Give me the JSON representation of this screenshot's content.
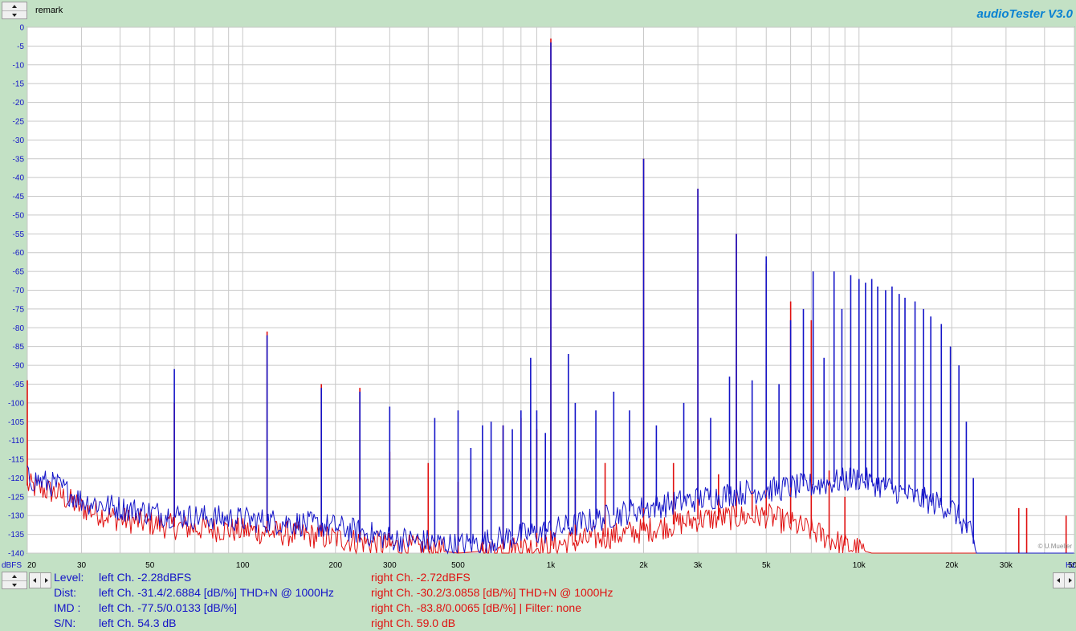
{
  "header": {
    "remark_label": "remark",
    "app_title": "audioTester  V3.0"
  },
  "watermark": "© U.Mueller",
  "stats": {
    "left": [
      {
        "label": "Level:",
        "value": "left Ch. -2.28dBFS"
      },
      {
        "label": "Dist:",
        "value": "left Ch. -31.4/2.6884 [dB/%] THD+N  @ 1000Hz"
      },
      {
        "label": "IMD  :",
        "value": "left Ch. -77.5/0.0133 [dB/%]"
      },
      {
        "label": "S/N:",
        "value": "left Ch. 54.3 dB"
      }
    ],
    "right": [
      "right Ch. -2.72dBFS",
      "right Ch. -30.2/3.0858 [dB/%] THD+N  @ 1000Hz",
      "right Ch. -83.8/0.0065 [dB/%] |   Filter: none",
      "right Ch. 59.0 dB"
    ]
  },
  "colors": {
    "left_channel": "#1414c8",
    "right_channel": "#e01010",
    "background": "#c3e1c5",
    "plot_background": "#ffffff",
    "grid": "#c8c8c8"
  },
  "chart_data": {
    "type": "line",
    "x_scale": "log",
    "xlim": [
      20,
      50000
    ],
    "ylim": [
      -140,
      0
    ],
    "grid": true,
    "ylabel": "dBFS",
    "xlabel": "Hz",
    "x_ticks": [
      {
        "value": 20,
        "label": "20"
      },
      {
        "value": 30,
        "label": "30"
      },
      {
        "value": 50,
        "label": "50"
      },
      {
        "value": 100,
        "label": "100"
      },
      {
        "value": 200,
        "label": "200"
      },
      {
        "value": 300,
        "label": "300"
      },
      {
        "value": 500,
        "label": "500"
      },
      {
        "value": 1000,
        "label": "1k"
      },
      {
        "value": 2000,
        "label": "2k"
      },
      {
        "value": 3000,
        "label": "3k"
      },
      {
        "value": 5000,
        "label": "5k"
      },
      {
        "value": 10000,
        "label": "10k"
      },
      {
        "value": 20000,
        "label": "20k"
      },
      {
        "value": 30000,
        "label": "30k"
      },
      {
        "value": 50000,
        "label": "50k"
      }
    ],
    "y_ticks": [
      0,
      -5,
      -10,
      -15,
      -20,
      -25,
      -30,
      -35,
      -40,
      -45,
      -50,
      -55,
      -60,
      -65,
      -70,
      -75,
      -80,
      -85,
      -90,
      -95,
      -100,
      -105,
      -110,
      -115,
      -120,
      -125,
      -130,
      -135,
      -140
    ],
    "series": [
      {
        "name": "left Ch.",
        "color": "#1414c8",
        "floor": [
          [
            20,
            -120
          ],
          [
            25,
            -122
          ],
          [
            30,
            -126
          ],
          [
            40,
            -128
          ],
          [
            60,
            -130
          ],
          [
            100,
            -131
          ],
          [
            150,
            -132
          ],
          [
            200,
            -133
          ],
          [
            300,
            -136
          ],
          [
            400,
            -137
          ],
          [
            500,
            -138
          ],
          [
            700,
            -136
          ],
          [
            1000,
            -134
          ],
          [
            2000,
            -128
          ],
          [
            4000,
            -124
          ],
          [
            7000,
            -122
          ],
          [
            10000,
            -120
          ],
          [
            15000,
            -125
          ],
          [
            20000,
            -128
          ],
          [
            23000,
            -135
          ],
          [
            24000,
            -140
          ],
          [
            50000,
            -140
          ]
        ],
        "peaks": [
          [
            60,
            -91
          ],
          [
            120,
            -82
          ],
          [
            180,
            -96
          ],
          [
            240,
            -97
          ],
          [
            300,
            -101
          ],
          [
            420,
            -104
          ],
          [
            500,
            -102
          ],
          [
            550,
            -112
          ],
          [
            600,
            -106
          ],
          [
            640,
            -105
          ],
          [
            700,
            -106
          ],
          [
            750,
            -107
          ],
          [
            800,
            -102
          ],
          [
            860,
            -88
          ],
          [
            900,
            -102
          ],
          [
            960,
            -108
          ],
          [
            1000,
            -4
          ],
          [
            1140,
            -87
          ],
          [
            1200,
            -100
          ],
          [
            1400,
            -102
          ],
          [
            1600,
            -97
          ],
          [
            1800,
            -102
          ],
          [
            2000,
            -35
          ],
          [
            2200,
            -106
          ],
          [
            2700,
            -100
          ],
          [
            3000,
            -43
          ],
          [
            3300,
            -104
          ],
          [
            3800,
            -93
          ],
          [
            4000,
            -55
          ],
          [
            4500,
            -94
          ],
          [
            5000,
            -61
          ],
          [
            5500,
            -95
          ],
          [
            6000,
            -78
          ],
          [
            6600,
            -75
          ],
          [
            7100,
            -65
          ],
          [
            7700,
            -88
          ],
          [
            8300,
            -65
          ],
          [
            8800,
            -75
          ],
          [
            9400,
            -66
          ],
          [
            10000,
            -67
          ],
          [
            10500,
            -68
          ],
          [
            11000,
            -67
          ],
          [
            11500,
            -69
          ],
          [
            12200,
            -70
          ],
          [
            12800,
            -69
          ],
          [
            13500,
            -71
          ],
          [
            14100,
            -72
          ],
          [
            15200,
            -73
          ],
          [
            16200,
            -75
          ],
          [
            17100,
            -77
          ],
          [
            18500,
            -79
          ],
          [
            19800,
            -85
          ],
          [
            21100,
            -90
          ],
          [
            22300,
            -105
          ],
          [
            23500,
            -120
          ]
        ]
      },
      {
        "name": "right Ch.",
        "color": "#e01010",
        "floor": [
          [
            20,
            -122
          ],
          [
            25,
            -124
          ],
          [
            30,
            -128
          ],
          [
            40,
            -131
          ],
          [
            60,
            -133
          ],
          [
            100,
            -134
          ],
          [
            150,
            -135
          ],
          [
            200,
            -136
          ],
          [
            300,
            -138
          ],
          [
            400,
            -139
          ],
          [
            500,
            -140
          ],
          [
            1000,
            -138
          ],
          [
            2000,
            -134
          ],
          [
            3000,
            -131
          ],
          [
            5000,
            -130
          ],
          [
            7000,
            -134
          ],
          [
            9000,
            -138
          ],
          [
            11000,
            -140
          ],
          [
            50000,
            -140
          ]
        ],
        "peaks": [
          [
            20,
            -94
          ],
          [
            60,
            -100
          ],
          [
            120,
            -81
          ],
          [
            180,
            -95
          ],
          [
            240,
            -96
          ],
          [
            300,
            -113
          ],
          [
            400,
            -116
          ],
          [
            500,
            -121
          ],
          [
            600,
            -118
          ],
          [
            700,
            -106
          ],
          [
            800,
            -104
          ],
          [
            900,
            -107
          ],
          [
            1000,
            -3
          ],
          [
            1200,
            -120
          ],
          [
            1500,
            -116
          ],
          [
            2000,
            -35
          ],
          [
            2500,
            -116
          ],
          [
            3000,
            -43
          ],
          [
            3500,
            -119
          ],
          [
            4000,
            -55
          ],
          [
            4500,
            -110
          ],
          [
            5000,
            -63
          ],
          [
            6000,
            -73
          ],
          [
            7000,
            -78
          ],
          [
            8000,
            -118
          ],
          [
            9000,
            -125
          ],
          [
            33000,
            -128
          ],
          [
            35000,
            -128
          ],
          [
            47000,
            -130
          ]
        ]
      }
    ]
  }
}
